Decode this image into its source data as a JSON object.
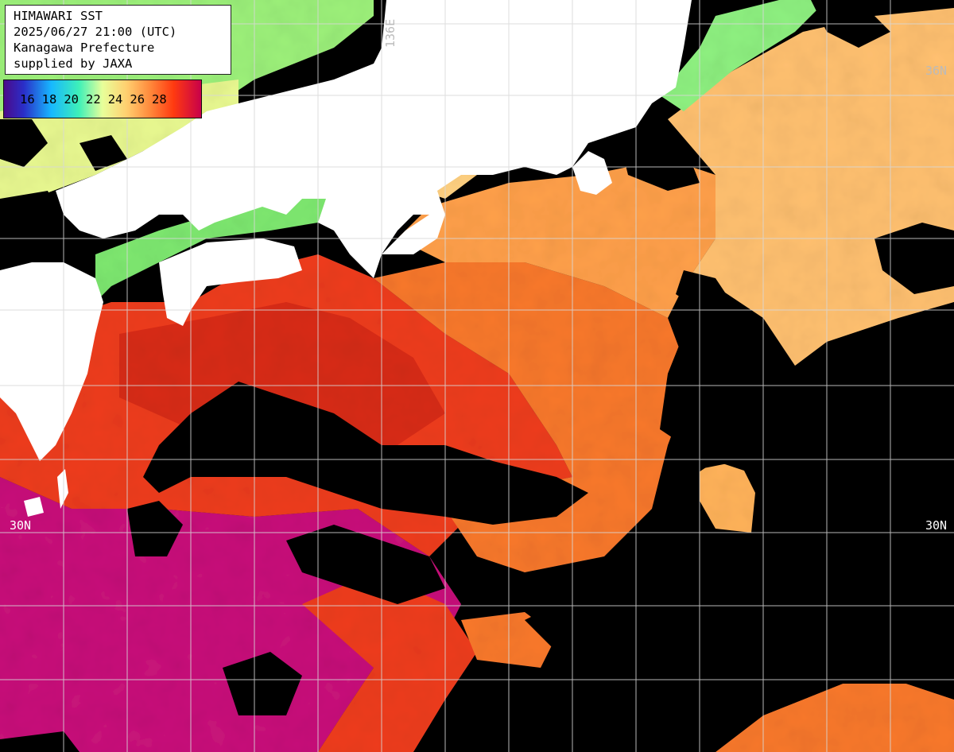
{
  "title": {
    "line1": "HIMAWARI SST",
    "line2": "2025/06/27 21:00 (UTC)",
    "line3": "Kanagawa Prefecture",
    "line4": "supplied by JAXA"
  },
  "legend": {
    "labels": [
      "16",
      "18",
      "20",
      "22",
      "24",
      "26",
      "28"
    ],
    "colors": [
      "#4b0a8a",
      "#17b8ff",
      "#3ef0b8",
      "#e8ff9a",
      "#ffd070",
      "#ff8a3c",
      "#ff3a10",
      "#c8004a"
    ]
  },
  "grid_labels": {
    "lon_top": "136E",
    "lat_right_top": "36N",
    "lat_left": "30N",
    "lat_right": "30N"
  },
  "colors": {
    "land": "#ffffff",
    "cloud": "#000000",
    "grid": "#cccccc",
    "sst_warm_orange": "#ff8a3c",
    "sst_red": "#f0421a",
    "sst_magenta": "#c8127a",
    "sst_pale": "#ffc878",
    "sst_green": "#9cf07a"
  }
}
